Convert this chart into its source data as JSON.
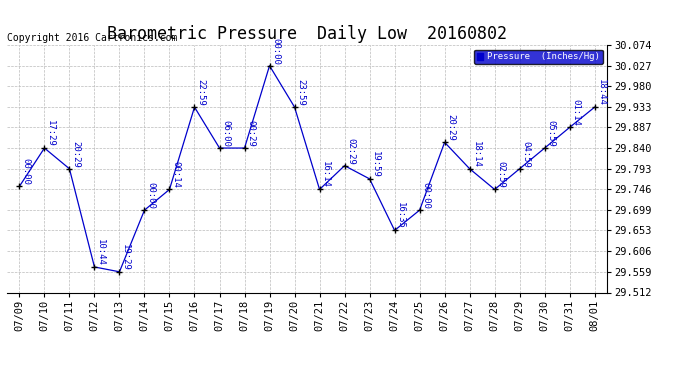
{
  "title": "Barometric Pressure  Daily Low  20160802",
  "copyright": "Copyright 2016 Cartronics.com",
  "legend_label": "Pressure  (Inches/Hg)",
  "x_labels": [
    "07/09",
    "07/10",
    "07/11",
    "07/12",
    "07/13",
    "07/14",
    "07/15",
    "07/16",
    "07/17",
    "07/18",
    "07/19",
    "07/20",
    "07/21",
    "07/22",
    "07/23",
    "07/24",
    "07/25",
    "07/26",
    "07/27",
    "07/28",
    "07/29",
    "07/30",
    "07/31",
    "08/01"
  ],
  "x_indices": [
    0,
    1,
    2,
    3,
    4,
    5,
    6,
    7,
    8,
    9,
    10,
    11,
    12,
    13,
    14,
    15,
    16,
    17,
    18,
    19,
    20,
    21,
    22,
    23
  ],
  "y_values": [
    29.753,
    29.84,
    29.793,
    29.57,
    29.559,
    29.699,
    29.746,
    29.933,
    29.84,
    29.84,
    30.027,
    29.933,
    29.746,
    29.8,
    29.77,
    29.653,
    29.699,
    29.853,
    29.793,
    29.746,
    29.793,
    29.84,
    29.887,
    29.933
  ],
  "time_labels": [
    "00:00",
    "17:29",
    "20:29",
    "10:44",
    "19:29",
    "00:00",
    "00:14",
    "22:59",
    "06:00",
    "00:29",
    "00:00",
    "23:59",
    "16:14",
    "02:29",
    "19:59",
    "16:35",
    "00:00",
    "20:29",
    "18:14",
    "02:59",
    "04:59",
    "05:59",
    "01:14",
    "18:44"
  ],
  "line_color": "#0000CC",
  "marker_color": "#000000",
  "bg_color": "#ffffff",
  "grid_color": "#bbbbbb",
  "ylim_min": 29.512,
  "ylim_max": 30.074,
  "yticks": [
    29.512,
    29.559,
    29.606,
    29.653,
    29.699,
    29.746,
    29.793,
    29.84,
    29.887,
    29.933,
    29.98,
    30.027,
    30.074
  ],
  "title_fontsize": 12,
  "label_fontsize": 6.5,
  "tick_fontsize": 7.5,
  "copyright_fontsize": 7
}
